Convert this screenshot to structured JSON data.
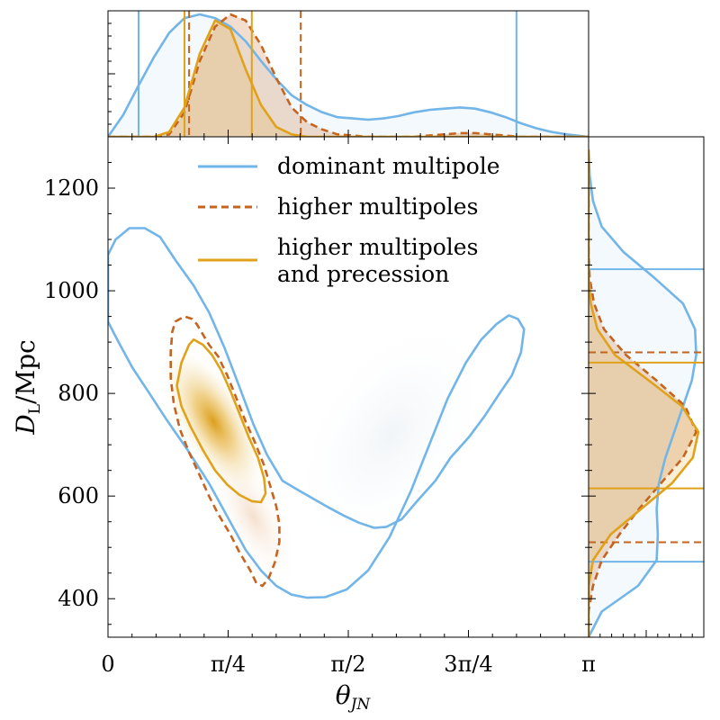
{
  "chart_data": {
    "type": "contour",
    "xlabel": "θ_JN",
    "ylabel": "D_L/Mpc",
    "xlim": [
      0,
      3.14159
    ],
    "ylim": [
      325,
      1300
    ],
    "xticks": [
      {
        "value": 0,
        "label": "0"
      },
      {
        "value": 0.7854,
        "label": "π/4"
      },
      {
        "value": 1.5708,
        "label": "π/2"
      },
      {
        "value": 2.3562,
        "label": "3π/4"
      },
      {
        "value": 3.14159,
        "label": "π"
      }
    ],
    "yticks": [
      {
        "value": 400,
        "label": "400"
      },
      {
        "value": 600,
        "label": "600"
      },
      {
        "value": 800,
        "label": "800"
      },
      {
        "value": 1000,
        "label": "1000"
      },
      {
        "value": 1200,
        "label": "1200"
      }
    ],
    "legend_position": "top",
    "series": [
      {
        "name": "dominant multipole",
        "color": "#72b5e8",
        "dash": "solid",
        "contour": [
          [
            0.0,
            940
          ],
          [
            0.06,
            905
          ],
          [
            0.16,
            850
          ],
          [
            0.26,
            805
          ],
          [
            0.38,
            750
          ],
          [
            0.52,
            690
          ],
          [
            0.66,
            625
          ],
          [
            0.78,
            560
          ],
          [
            0.9,
            495
          ],
          [
            1.0,
            455
          ],
          [
            1.1,
            425
          ],
          [
            1.2,
            408
          ],
          [
            1.3,
            402
          ],
          [
            1.42,
            403
          ],
          [
            1.56,
            418
          ],
          [
            1.7,
            455
          ],
          [
            1.84,
            520
          ],
          [
            1.98,
            610
          ],
          [
            2.1,
            700
          ],
          [
            2.22,
            790
          ],
          [
            2.34,
            860
          ],
          [
            2.44,
            905
          ],
          [
            2.54,
            935
          ],
          [
            2.62,
            952
          ],
          [
            2.68,
            945
          ],
          [
            2.72,
            925
          ],
          [
            2.7,
            880
          ],
          [
            2.64,
            835
          ],
          [
            2.56,
            800
          ],
          [
            2.46,
            755
          ],
          [
            2.36,
            715
          ],
          [
            2.24,
            675
          ],
          [
            2.14,
            630
          ],
          [
            2.02,
            590
          ],
          [
            1.92,
            555
          ],
          [
            1.82,
            540
          ],
          [
            1.74,
            538
          ],
          [
            1.64,
            548
          ],
          [
            1.54,
            562
          ],
          [
            1.44,
            578
          ],
          [
            1.34,
            595
          ],
          [
            1.24,
            612
          ],
          [
            1.14,
            630
          ],
          [
            1.04,
            680
          ],
          [
            0.95,
            740
          ],
          [
            0.86,
            812
          ],
          [
            0.76,
            890
          ],
          [
            0.66,
            958
          ],
          [
            0.56,
            1010
          ],
          [
            0.44,
            1060
          ],
          [
            0.34,
            1105
          ],
          [
            0.24,
            1122
          ],
          [
            0.14,
            1122
          ],
          [
            0.05,
            1100
          ],
          [
            0.0,
            1070
          ]
        ],
        "marginal_x_ci": [
          0.2,
          2.67
        ],
        "marginal_y_ci": [
          472,
          1042
        ]
      },
      {
        "name": "higher multipoles",
        "color": "#c6641f",
        "dash": "dashed",
        "contour": [
          [
            0.44,
            940
          ],
          [
            0.5,
            950
          ],
          [
            0.55,
            945
          ],
          [
            0.58,
            935
          ],
          [
            0.62,
            915
          ],
          [
            0.66,
            895
          ],
          [
            0.72,
            872
          ],
          [
            0.78,
            835
          ],
          [
            0.84,
            790
          ],
          [
            0.9,
            745
          ],
          [
            0.96,
            705
          ],
          [
            1.02,
            660
          ],
          [
            1.06,
            620
          ],
          [
            1.1,
            580
          ],
          [
            1.12,
            545
          ],
          [
            1.12,
            510
          ],
          [
            1.09,
            470
          ],
          [
            1.05,
            440
          ],
          [
            1.01,
            425
          ],
          [
            0.97,
            430
          ],
          [
            0.93,
            455
          ],
          [
            0.86,
            490
          ],
          [
            0.8,
            525
          ],
          [
            0.72,
            565
          ],
          [
            0.66,
            600
          ],
          [
            0.6,
            640
          ],
          [
            0.53,
            685
          ],
          [
            0.47,
            730
          ],
          [
            0.43,
            780
          ],
          [
            0.41,
            830
          ],
          [
            0.41,
            880
          ],
          [
            0.42,
            920
          ]
        ],
        "marginal_x_ci": [
          0.53,
          1.26
        ],
        "marginal_y_ci": [
          510,
          880
        ]
      },
      {
        "name": "higher multipoles\nand precession",
        "color": "#e0a11b",
        "dash": "solid",
        "contour": [
          [
            0.48,
            860
          ],
          [
            0.53,
            895
          ],
          [
            0.56,
            905
          ],
          [
            0.62,
            895
          ],
          [
            0.68,
            875
          ],
          [
            0.74,
            845
          ],
          [
            0.8,
            805
          ],
          [
            0.86,
            760
          ],
          [
            0.92,
            715
          ],
          [
            0.98,
            675
          ],
          [
            1.02,
            635
          ],
          [
            1.03,
            605
          ],
          [
            1.0,
            588
          ],
          [
            0.94,
            590
          ],
          [
            0.86,
            602
          ],
          [
            0.78,
            622
          ],
          [
            0.7,
            650
          ],
          [
            0.62,
            690
          ],
          [
            0.54,
            735
          ],
          [
            0.48,
            775
          ],
          [
            0.45,
            815
          ]
        ],
        "marginal_x_ci": [
          0.5,
          0.94
        ],
        "marginal_y_ci": [
          615,
          860
        ]
      }
    ],
    "density_peak": {
      "x": 0.69,
      "y": 745
    },
    "marginal_x_pdf": {
      "x": [
        0.0,
        0.1,
        0.2,
        0.3,
        0.4,
        0.5,
        0.6,
        0.7,
        0.8,
        0.9,
        1.0,
        1.1,
        1.2,
        1.3,
        1.4,
        1.5,
        1.6,
        1.7,
        1.8,
        1.9,
        2.0,
        2.1,
        2.2,
        2.3,
        2.4,
        2.5,
        2.6,
        2.7,
        2.8,
        2.9,
        3.0,
        3.14
      ],
      "dominant": [
        0.0,
        0.18,
        0.42,
        0.65,
        0.85,
        0.97,
        1.0,
        0.97,
        0.9,
        0.78,
        0.62,
        0.47,
        0.34,
        0.26,
        0.2,
        0.16,
        0.15,
        0.14,
        0.15,
        0.17,
        0.2,
        0.22,
        0.23,
        0.24,
        0.23,
        0.2,
        0.16,
        0.11,
        0.07,
        0.04,
        0.02,
        0.0
      ],
      "higher": [
        0.0,
        0.0,
        0.0,
        0.0,
        0.02,
        0.2,
        0.62,
        0.9,
        1.0,
        0.95,
        0.75,
        0.48,
        0.24,
        0.12,
        0.06,
        0.02,
        0.01,
        0.0,
        0.0,
        0.0,
        0.0,
        0.01,
        0.02,
        0.03,
        0.03,
        0.02,
        0.01,
        0.0,
        0.0,
        0.0,
        0.0,
        0.0
      ],
      "precession": [
        0.0,
        0.0,
        0.0,
        0.0,
        0.04,
        0.24,
        0.68,
        0.95,
        0.88,
        0.55,
        0.26,
        0.08,
        0.02,
        0.0,
        0.0,
        0.0,
        0.0,
        0.0,
        0.0,
        0.0,
        0.0,
        0.0,
        0.0,
        0.0,
        0.0,
        0.0,
        0.0,
        0.0,
        0.0,
        0.0,
        0.0,
        0.0
      ]
    },
    "marginal_y_pdf": {
      "y": [
        325,
        375,
        425,
        475,
        525,
        575,
        625,
        675,
        725,
        775,
        825,
        875,
        925,
        975,
        1025,
        1075,
        1125,
        1175,
        1225,
        1275
      ],
      "dominant": [
        0.0,
        0.12,
        0.45,
        0.62,
        0.63,
        0.62,
        0.64,
        0.7,
        0.78,
        0.86,
        0.94,
        0.98,
        0.97,
        0.86,
        0.6,
        0.32,
        0.12,
        0.04,
        0.01,
        0.0
      ],
      "higher": [
        0.0,
        0.0,
        0.04,
        0.12,
        0.28,
        0.46,
        0.66,
        0.86,
        0.98,
        0.88,
        0.62,
        0.34,
        0.14,
        0.05,
        0.01,
        0.0,
        0.0,
        0.0,
        0.0,
        0.0
      ],
      "precession": [
        0.0,
        0.0,
        0.0,
        0.04,
        0.2,
        0.48,
        0.76,
        0.95,
        1.0,
        0.85,
        0.55,
        0.24,
        0.08,
        0.02,
        0.0,
        0.0,
        0.0,
        0.0,
        0.0,
        0.0
      ]
    }
  }
}
